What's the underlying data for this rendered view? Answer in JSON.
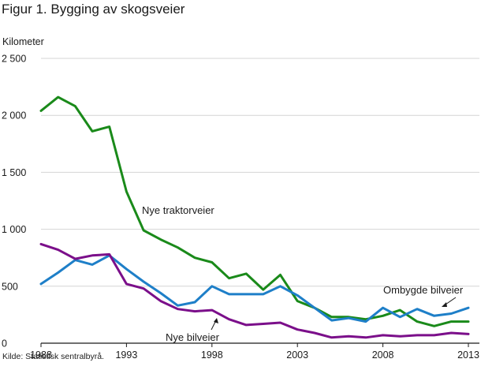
{
  "title": "Figur 1. Bygging av skogsveier",
  "source": "Kilde: Statistisk sentralbyrå.",
  "chart_data": {
    "type": "line",
    "title": "Figur 1. Bygging av skogsveier",
    "ylabel": "Kilometer",
    "xlabel": "",
    "ylim": [
      0,
      2500
    ],
    "xlim": [
      1988,
      2013
    ],
    "grid": true,
    "y_ticks": [
      0,
      500,
      1000,
      1500,
      2000,
      2500
    ],
    "y_tick_labels": [
      "0",
      "500",
      "1 000",
      "1 500",
      "2 000",
      "2 500"
    ],
    "x_ticks": [
      1988,
      1993,
      1998,
      2003,
      2008,
      2013
    ],
    "x_tick_labels": [
      "1988",
      "1993",
      "1998",
      "2003",
      "2008",
      "2013"
    ],
    "x": [
      1988,
      1989,
      1990,
      1991,
      1992,
      1993,
      1994,
      1995,
      1996,
      1997,
      1998,
      1999,
      2000,
      2001,
      2002,
      2003,
      2004,
      2005,
      2006,
      2007,
      2008,
      2009,
      2010,
      2011,
      2012,
      2013
    ],
    "series": [
      {
        "name": "Nye traktorveier",
        "color": "#1a8a1a",
        "values": [
          2040,
          2160,
          2080,
          1860,
          1900,
          1330,
          990,
          910,
          840,
          750,
          710,
          570,
          610,
          470,
          600,
          370,
          310,
          230,
          230,
          210,
          240,
          290,
          190,
          150,
          190,
          190
        ]
      },
      {
        "name": "Ombygde bilveier",
        "color": "#1e7fc8",
        "values": [
          520,
          620,
          730,
          690,
          770,
          650,
          540,
          440,
          330,
          360,
          500,
          430,
          430,
          430,
          500,
          420,
          310,
          200,
          220,
          190,
          310,
          230,
          300,
          240,
          260,
          310
        ]
      },
      {
        "name": "Nye bilveier",
        "color": "#7b0f8a",
        "values": [
          870,
          820,
          740,
          770,
          780,
          520,
          480,
          370,
          300,
          280,
          290,
          210,
          160,
          170,
          180,
          120,
          90,
          50,
          60,
          50,
          70,
          60,
          70,
          70,
          90,
          80
        ]
      }
    ],
    "annotations": [
      {
        "text": "Nye traktorveier",
        "series": "Nye traktorveier"
      },
      {
        "text": "Ombygde bilveier",
        "series": "Ombygde bilveier"
      },
      {
        "text": "Nye bilveier",
        "series": "Nye bilveier"
      }
    ]
  }
}
